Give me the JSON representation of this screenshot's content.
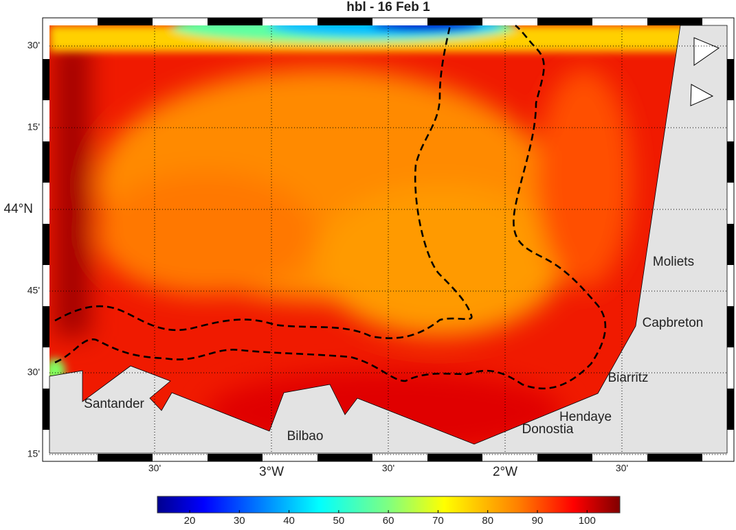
{
  "title": "hbl - 16 Feb 1",
  "lon_ticks": [
    {
      "value": -3.5,
      "label": "30'"
    },
    {
      "value": -3,
      "label": "3°W"
    },
    {
      "value": -2.5,
      "label": "30'"
    },
    {
      "value": -2,
      "label": "2°W"
    },
    {
      "value": -1.5,
      "label": "30'"
    }
  ],
  "lat_ticks": [
    {
      "value": 44.5,
      "label": "30'"
    },
    {
      "value": 44.25,
      "label": "15'"
    },
    {
      "value": 44,
      "label": "44°N"
    },
    {
      "value": 43.75,
      "label": "45'"
    },
    {
      "value": 43.5,
      "label": "30'"
    },
    {
      "value": 43.25,
      "label": "15'"
    }
  ],
  "places": [
    "Santander",
    "Bilbao",
    "Donostia",
    "Hendaye",
    "Biarritz",
    "Capbreton",
    "Moliets"
  ],
  "colorbar": {
    "clim": [
      13.5,
      106.6
    ],
    "ticks": [
      20,
      30,
      40,
      50,
      60,
      70,
      80,
      90,
      100
    ]
  }
}
